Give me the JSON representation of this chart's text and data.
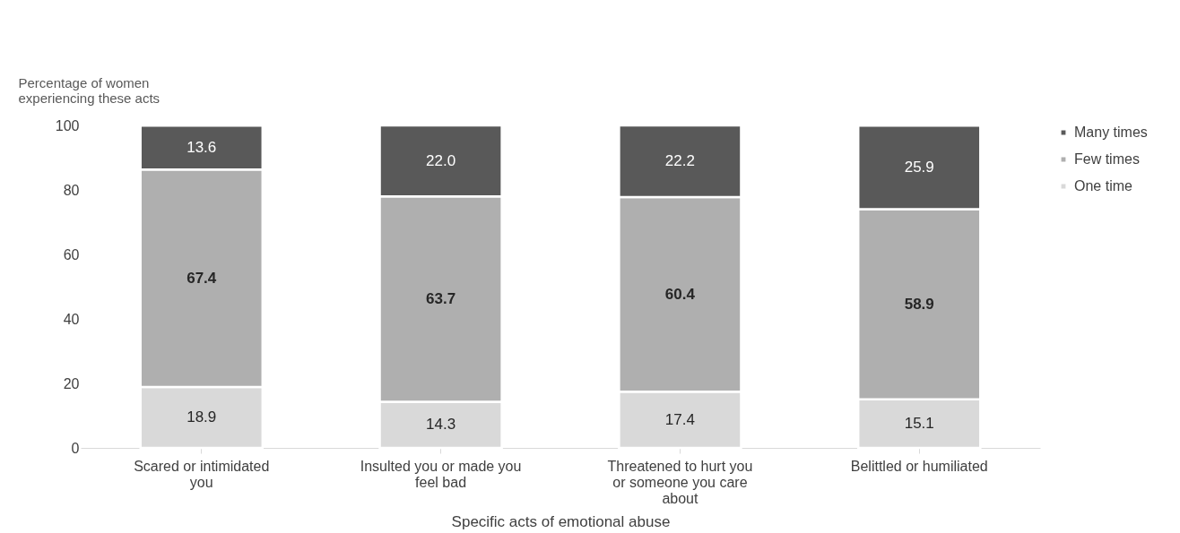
{
  "chart_data": {
    "type": "bar",
    "stacked": true,
    "ylabel": "Percentage of women experiencing these acts",
    "xlabel": "Specific acts of emotional abuse",
    "categories": [
      "Scared or intimidated you",
      "Insulted you or made you feel bad",
      "Threatened to hurt you or someone you care about",
      "Belittled or humiliated"
    ],
    "series": [
      {
        "name": "One time",
        "color": "#d9d9d9",
        "values": [
          18.9,
          14.3,
          17.4,
          15.1
        ],
        "value_labels": [
          "18.9",
          "14.3",
          "17.4",
          "15.1"
        ]
      },
      {
        "name": "Few times",
        "color": "#afafaf",
        "values": [
          67.4,
          63.7,
          60.4,
          58.9
        ],
        "value_labels": [
          "67.4",
          "63.7",
          "60.4",
          "58.9"
        ]
      },
      {
        "name": "Many times",
        "color": "#595959",
        "values": [
          13.6,
          22.0,
          22.2,
          25.9
        ],
        "value_labels": [
          "13.6",
          "22.0",
          "22.2",
          "25.9"
        ]
      }
    ],
    "ylim": [
      0,
      100
    ],
    "yticks": [
      0,
      20,
      40,
      60,
      80,
      100
    ],
    "grid": false,
    "legend": "right"
  }
}
